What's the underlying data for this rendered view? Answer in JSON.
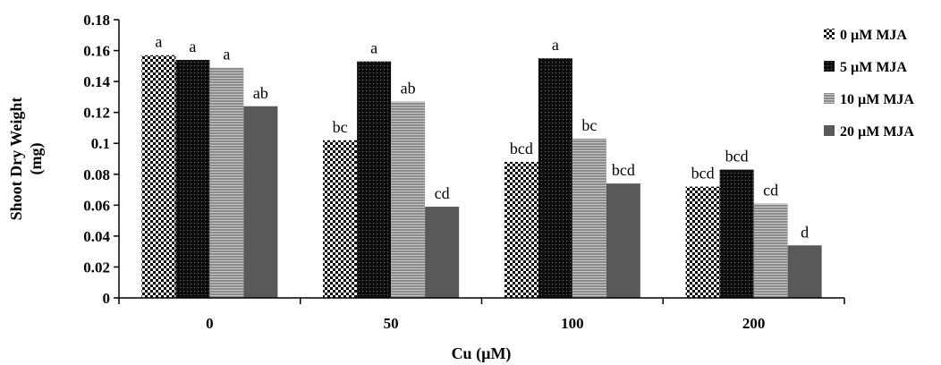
{
  "chart_data": {
    "type": "bar",
    "title": "",
    "xlabel": "Cu (µM)",
    "ylabel_lines": [
      "Shoot Dry Weight",
      "(mg)"
    ],
    "categories": [
      "0",
      "50",
      "100",
      "200"
    ],
    "ylim": [
      0,
      0.18
    ],
    "yticks": [
      "0",
      "0.02",
      "0.04",
      "0.06",
      "0.08",
      "0.1",
      "0.12",
      "0.14",
      "0.16",
      "0.18"
    ],
    "grid": false,
    "legend_position": "right",
    "series": [
      {
        "name": "0 µM MJA",
        "values": [
          0.157,
          0.102,
          0.088,
          0.072
        ],
        "labels": [
          "a",
          "bc",
          "bcd",
          "bcd"
        ],
        "pattern": "checker"
      },
      {
        "name": "5 µM MJA",
        "values": [
          0.154,
          0.153,
          0.155,
          0.083
        ],
        "labels": [
          "a",
          "a",
          "a",
          "bcd"
        ],
        "pattern": "dark-dots"
      },
      {
        "name": "10 µM MJA",
        "values": [
          0.149,
          0.127,
          0.103,
          0.061
        ],
        "labels": [
          "a",
          "ab",
          "bc",
          "cd"
        ],
        "pattern": "gray-stripes"
      },
      {
        "name": "20 µM MJA",
        "values": [
          0.124,
          0.059,
          0.074,
          0.034
        ],
        "labels": [
          "ab",
          "cd",
          "bcd",
          "d"
        ],
        "pattern": "solid",
        "color": "#595959"
      }
    ]
  }
}
